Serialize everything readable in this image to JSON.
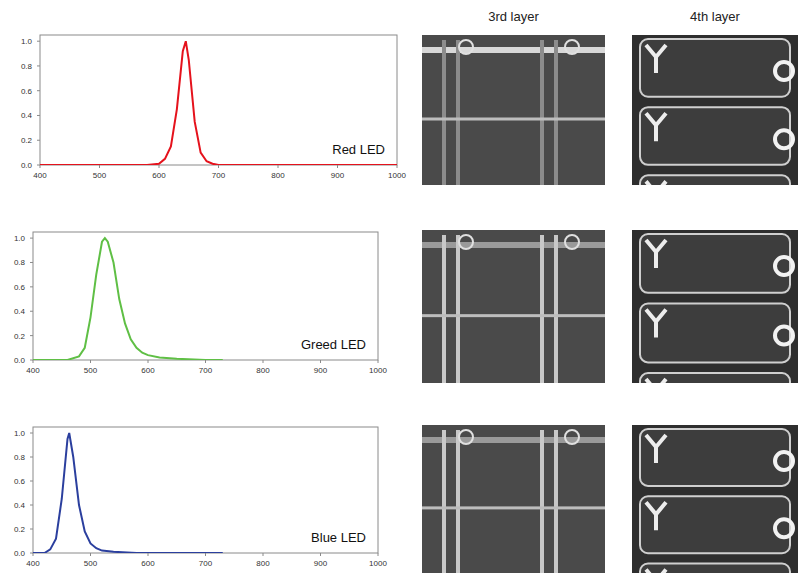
{
  "column_heads": [
    "3rd layer",
    "4th layer"
  ],
  "chart_data": [
    {
      "type": "line",
      "annotation": "Red LED",
      "color": "#e5121c",
      "x": [
        400,
        500,
        580,
        600,
        610,
        620,
        630,
        640,
        645,
        650,
        660,
        670,
        680,
        690,
        700,
        800,
        900,
        1000
      ],
      "values": [
        0,
        0,
        0,
        0.01,
        0.05,
        0.15,
        0.45,
        0.92,
        1.0,
        0.85,
        0.35,
        0.1,
        0.03,
        0.01,
        0,
        0,
        0,
        0
      ],
      "xlim": [
        400,
        1000
      ],
      "xticks": [
        400,
        500,
        600,
        700,
        800,
        900,
        1000
      ],
      "ylim": [
        0,
        1.05
      ],
      "yticks": [
        {
          "value": 0,
          "label": "0.0"
        },
        {
          "value": 0.2,
          "label": "0.2"
        },
        {
          "value": 0.4,
          "label": "0.4"
        },
        {
          "value": 0.6,
          "label": "0.6"
        },
        {
          "value": 0.8,
          "label": "0.8"
        },
        {
          "value": 1,
          "label": "1.0"
        }
      ],
      "grid": false
    },
    {
      "type": "line",
      "annotation": "Greed LED",
      "color": "#5fbf45",
      "x": [
        400,
        460,
        480,
        490,
        500,
        510,
        520,
        525,
        530,
        540,
        550,
        560,
        570,
        580,
        590,
        600,
        620,
        650,
        700,
        730
      ],
      "values": [
        0,
        0,
        0.03,
        0.1,
        0.35,
        0.7,
        0.97,
        1.0,
        0.97,
        0.8,
        0.5,
        0.3,
        0.17,
        0.1,
        0.06,
        0.04,
        0.02,
        0.01,
        0,
        0
      ],
      "xlim": [
        400,
        1000
      ],
      "xticks": [
        400,
        500,
        600,
        700,
        800,
        900,
        1000
      ],
      "ylim": [
        0,
        1.05
      ],
      "yticks": [
        {
          "value": 0,
          "label": "0.0"
        },
        {
          "value": 0.2,
          "label": "0.2"
        },
        {
          "value": 0.4,
          "label": "0.4"
        },
        {
          "value": 0.6,
          "label": "0.6"
        },
        {
          "value": 0.8,
          "label": "0.8"
        },
        {
          "value": 1,
          "label": "1.0"
        }
      ],
      "grid": false
    },
    {
      "type": "line",
      "annotation": "Blue LED",
      "color": "#2b3f9e",
      "x": [
        400,
        420,
        430,
        440,
        450,
        460,
        463,
        470,
        480,
        490,
        500,
        510,
        520,
        540,
        580,
        730
      ],
      "values": [
        0,
        0,
        0.03,
        0.12,
        0.45,
        0.95,
        1.0,
        0.8,
        0.4,
        0.18,
        0.08,
        0.04,
        0.02,
        0.01,
        0,
        0
      ],
      "xlim": [
        400,
        1000
      ],
      "xticks": [
        400,
        500,
        600,
        700,
        800,
        900,
        1000
      ],
      "ylim": [
        0,
        1.05
      ],
      "yticks": [
        {
          "value": 0,
          "label": "0.0"
        },
        {
          "value": 0.2,
          "label": "0.2"
        },
        {
          "value": 0.4,
          "label": "0.4"
        },
        {
          "value": 0.6,
          "label": "0.6"
        },
        {
          "value": 0.8,
          "label": "0.8"
        },
        {
          "value": 1,
          "label": "1.0"
        }
      ],
      "grid": false
    }
  ]
}
